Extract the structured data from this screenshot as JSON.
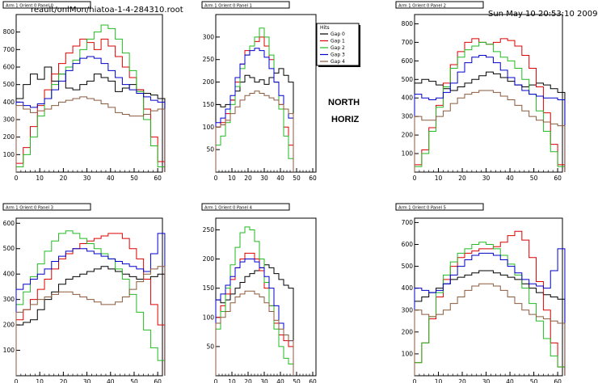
{
  "header": {
    "file": "reault/onlMon/hiatoa-1-4-284310.root",
    "timestamp": "Sun May 10 20:53:10 2009"
  },
  "notes": {
    "north": "NORTH",
    "horiz": "HORIZ"
  },
  "legend": {
    "title": "Hits",
    "entries": [
      "Gap 0",
      "Gap 1",
      "Gap 2",
      "Gap 3",
      "Gap 4"
    ]
  },
  "colors": {
    "Gap 0": "#000000",
    "Gap 1": "#dd0000",
    "Gap 2": "#22bb22",
    "Gap 3": "#0000cc",
    "Gap 4": "#8b5a3c"
  },
  "chart_data": [
    {
      "type": "line",
      "title": "Arm 1 Orient 0 Panel 0",
      "xlim": [
        0,
        62
      ],
      "ylim": [
        0,
        900
      ],
      "xticks": [
        0,
        10,
        20,
        30,
        40,
        50,
        60
      ],
      "yticks": [
        100,
        200,
        300,
        400,
        500,
        600,
        700,
        800
      ],
      "x": [
        0,
        3,
        6,
        9,
        12,
        15,
        18,
        21,
        24,
        27,
        30,
        33,
        36,
        39,
        42,
        45,
        48,
        51,
        54,
        57,
        60
      ],
      "series": [
        {
          "name": "Gap 0",
          "values": [
            420,
            500,
            560,
            530,
            600,
            520,
            560,
            480,
            470,
            500,
            520,
            560,
            540,
            520,
            460,
            480,
            500,
            470,
            450,
            440,
            420
          ]
        },
        {
          "name": "Gap 1",
          "values": [
            50,
            140,
            260,
            380,
            470,
            560,
            620,
            680,
            720,
            760,
            740,
            700,
            760,
            720,
            660,
            600,
            540,
            470,
            360,
            200,
            60
          ]
        },
        {
          "name": "Gap 2",
          "values": [
            30,
            100,
            200,
            320,
            420,
            500,
            560,
            600,
            640,
            700,
            760,
            800,
            840,
            820,
            760,
            680,
            580,
            460,
            300,
            150,
            30
          ]
        },
        {
          "name": "Gap 3",
          "values": [
            400,
            380,
            370,
            390,
            420,
            470,
            520,
            580,
            620,
            650,
            660,
            650,
            620,
            580,
            540,
            500,
            470,
            450,
            430,
            410,
            400
          ]
        },
        {
          "name": "Gap 4",
          "values": [
            380,
            360,
            340,
            350,
            360,
            380,
            400,
            410,
            420,
            430,
            420,
            410,
            390,
            370,
            340,
            330,
            320,
            320,
            330,
            350,
            360
          ]
        }
      ]
    },
    {
      "type": "line",
      "title": "Arm 1 Orient 0 Panel 1",
      "xlim": [
        0,
        62
      ],
      "ylim": [
        0,
        350
      ],
      "xticks": [
        0,
        10,
        20,
        30,
        40,
        50,
        60
      ],
      "yticks": [
        50,
        100,
        150,
        200,
        250,
        300
      ],
      "x": [
        0,
        3,
        6,
        9,
        12,
        15,
        18,
        21,
        24,
        27,
        30,
        33,
        36,
        39,
        42,
        45
      ],
      "series": [
        {
          "name": "Gap 0",
          "values": [
            150,
            145,
            150,
            160,
            180,
            200,
            215,
            210,
            200,
            205,
            195,
            210,
            220,
            230,
            215,
            200
          ]
        },
        {
          "name": "Gap 1",
          "values": [
            100,
            110,
            130,
            160,
            200,
            240,
            270,
            280,
            290,
            300,
            280,
            250,
            200,
            150,
            100,
            60
          ]
        },
        {
          "name": "Gap 2",
          "values": [
            60,
            80,
            110,
            150,
            190,
            230,
            260,
            280,
            300,
            320,
            300,
            260,
            200,
            140,
            80,
            30
          ]
        },
        {
          "name": "Gap 3",
          "values": [
            110,
            120,
            140,
            170,
            210,
            240,
            260,
            270,
            275,
            270,
            255,
            230,
            200,
            170,
            140,
            120
          ]
        },
        {
          "name": "Gap 4",
          "values": [
            100,
            105,
            115,
            130,
            145,
            160,
            170,
            175,
            180,
            175,
            170,
            165,
            160,
            150,
            140,
            130
          ]
        }
      ]
    },
    {
      "type": "line",
      "title": "Arm 1 Orient 0 Panel 2",
      "xlim": [
        0,
        62
      ],
      "ylim": [
        0,
        850
      ],
      "xticks": [
        0,
        10,
        20,
        30,
        40,
        50,
        60
      ],
      "yticks": [
        100,
        200,
        300,
        400,
        500,
        600,
        700,
        800
      ],
      "x": [
        0,
        3,
        6,
        9,
        12,
        15,
        18,
        21,
        24,
        27,
        30,
        33,
        36,
        39,
        42,
        45,
        48,
        51,
        54,
        57,
        60
      ],
      "series": [
        {
          "name": "Gap 0",
          "values": [
            480,
            500,
            490,
            470,
            450,
            440,
            460,
            480,
            500,
            520,
            540,
            530,
            510,
            490,
            470,
            460,
            470,
            480,
            470,
            450,
            430
          ]
        },
        {
          "name": "Gap 1",
          "values": [
            40,
            120,
            240,
            360,
            480,
            580,
            650,
            700,
            720,
            700,
            690,
            700,
            720,
            710,
            680,
            630,
            560,
            460,
            320,
            150,
            40
          ]
        },
        {
          "name": "Gap 2",
          "values": [
            30,
            100,
            220,
            350,
            460,
            560,
            620,
            660,
            680,
            700,
            690,
            650,
            620,
            600,
            560,
            500,
            420,
            330,
            220,
            110,
            30
          ]
        },
        {
          "name": "Gap 3",
          "values": [
            420,
            400,
            390,
            400,
            430,
            480,
            540,
            590,
            620,
            630,
            620,
            590,
            550,
            510,
            470,
            440,
            420,
            410,
            400,
            400,
            390
          ]
        },
        {
          "name": "Gap 4",
          "values": [
            300,
            280,
            280,
            300,
            330,
            370,
            400,
            420,
            430,
            440,
            440,
            430,
            410,
            390,
            360,
            330,
            300,
            280,
            270,
            260,
            250
          ]
        }
      ]
    },
    {
      "type": "line",
      "title": "Arm 1 Orient 0 Panel 3",
      "xlim": [
        0,
        62
      ],
      "ylim": [
        0,
        620
      ],
      "xticks": [
        0,
        10,
        20,
        30,
        40,
        50,
        60
      ],
      "yticks": [
        100,
        200,
        300,
        400,
        500,
        600
      ],
      "x": [
        0,
        3,
        6,
        9,
        12,
        15,
        18,
        21,
        24,
        27,
        30,
        33,
        36,
        39,
        42,
        45,
        48,
        51,
        54,
        57,
        60
      ],
      "series": [
        {
          "name": "Gap 0",
          "values": [
            200,
            210,
            220,
            260,
            300,
            330,
            360,
            380,
            390,
            400,
            410,
            420,
            430,
            420,
            410,
            400,
            390,
            380,
            380,
            390,
            400
          ]
        },
        {
          "name": "Gap 1",
          "values": [
            220,
            260,
            300,
            340,
            380,
            420,
            460,
            480,
            500,
            520,
            530,
            540,
            550,
            560,
            560,
            540,
            500,
            460,
            380,
            280,
            200
          ]
        },
        {
          "name": "Gap 2",
          "values": [
            280,
            330,
            390,
            440,
            490,
            530,
            560,
            570,
            560,
            540,
            520,
            500,
            480,
            460,
            420,
            380,
            320,
            250,
            180,
            110,
            60
          ]
        },
        {
          "name": "Gap 3",
          "values": [
            340,
            360,
            380,
            400,
            420,
            450,
            470,
            490,
            500,
            500,
            490,
            480,
            470,
            460,
            450,
            440,
            430,
            420,
            410,
            480,
            560
          ]
        },
        {
          "name": "Gap 4",
          "values": [
            250,
            260,
            280,
            300,
            310,
            320,
            330,
            330,
            320,
            310,
            300,
            290,
            280,
            280,
            290,
            310,
            340,
            370,
            400,
            420,
            430
          ]
        }
      ]
    },
    {
      "type": "line",
      "title": "Arm 1 Orient 0 Panel 4",
      "xlim": [
        0,
        62
      ],
      "ylim": [
        0,
        270
      ],
      "xticks": [
        0,
        10,
        20,
        30,
        40,
        50,
        60
      ],
      "yticks": [
        50,
        100,
        150,
        200,
        250
      ],
      "x": [
        0,
        3,
        6,
        9,
        12,
        15,
        18,
        21,
        24,
        27,
        30,
        33,
        36,
        39,
        42,
        45
      ],
      "series": [
        {
          "name": "Gap 0",
          "values": [
            130,
            125,
            130,
            140,
            150,
            160,
            170,
            175,
            180,
            185,
            190,
            185,
            175,
            165,
            155,
            150
          ]
        },
        {
          "name": "Gap 1",
          "values": [
            100,
            120,
            140,
            165,
            185,
            200,
            210,
            210,
            200,
            180,
            150,
            120,
            90,
            70,
            60,
            50
          ]
        },
        {
          "name": "Gap 2",
          "values": [
            80,
            110,
            150,
            190,
            220,
            245,
            255,
            250,
            230,
            200,
            160,
            120,
            80,
            50,
            30,
            20
          ]
        },
        {
          "name": "Gap 3",
          "values": [
            130,
            140,
            155,
            170,
            185,
            195,
            200,
            200,
            195,
            185,
            170,
            150,
            120,
            90,
            70,
            60
          ]
        },
        {
          "name": "Gap 4",
          "values": [
            90,
            100,
            110,
            125,
            135,
            140,
            145,
            145,
            140,
            135,
            125,
            110,
            95,
            80,
            70,
            60
          ]
        }
      ]
    },
    {
      "type": "line",
      "title": "Arm 1 Orient 0 Panel 5",
      "xlim": [
        0,
        62
      ],
      "ylim": [
        0,
        720
      ],
      "xticks": [
        0,
        10,
        20,
        30,
        40,
        50,
        60
      ],
      "yticks": [
        100,
        200,
        300,
        400,
        500,
        600,
        700
      ],
      "x": [
        0,
        3,
        6,
        9,
        12,
        15,
        18,
        21,
        24,
        27,
        30,
        33,
        36,
        39,
        42,
        45,
        48,
        51,
        54,
        57,
        60
      ],
      "series": [
        {
          "name": "Gap 0",
          "values": [
            340,
            360,
            380,
            400,
            420,
            440,
            450,
            460,
            470,
            480,
            480,
            470,
            460,
            450,
            440,
            420,
            400,
            380,
            370,
            360,
            350
          ]
        },
        {
          "name": "Gap 1",
          "values": [
            60,
            150,
            260,
            360,
            440,
            500,
            540,
            560,
            570,
            580,
            580,
            590,
            610,
            640,
            660,
            620,
            540,
            430,
            300,
            150,
            40
          ]
        },
        {
          "name": "Gap 2",
          "values": [
            60,
            150,
            270,
            380,
            460,
            520,
            560,
            580,
            600,
            610,
            600,
            580,
            550,
            510,
            460,
            400,
            330,
            250,
            170,
            90,
            40
          ]
        },
        {
          "name": "Gap 3",
          "values": [
            400,
            390,
            380,
            390,
            420,
            460,
            500,
            530,
            550,
            560,
            560,
            550,
            530,
            500,
            470,
            440,
            420,
            410,
            400,
            480,
            580
          ]
        },
        {
          "name": "Gap 4",
          "values": [
            300,
            280,
            270,
            280,
            300,
            330,
            360,
            390,
            410,
            420,
            420,
            410,
            390,
            360,
            330,
            300,
            280,
            270,
            260,
            250,
            240
          ]
        }
      ]
    }
  ]
}
